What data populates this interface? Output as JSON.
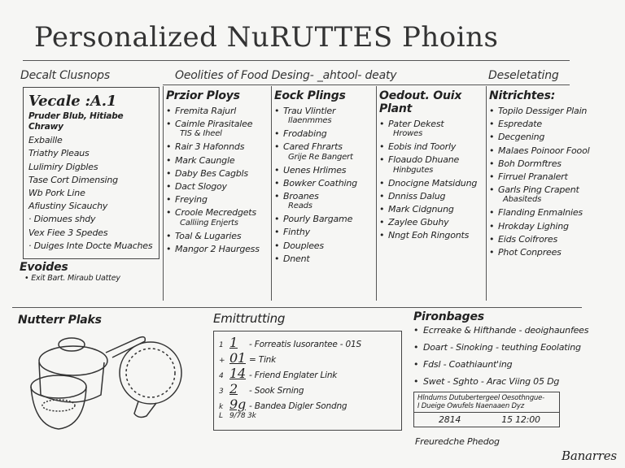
{
  "title": "Personalized NuRUTTES Phoins",
  "headers": {
    "left": "Decalt Clusnops",
    "middle": "Oeolities of Food Desing- _ahtool- deaty",
    "right": "Deseletating"
  },
  "left_panel": {
    "heading": "Vecale :A.1",
    "subheading": "Pruder Blub, Hitiabe Chrawy",
    "items": [
      "Exbaille",
      "Triathy Pleaus",
      "Lulimiry Digbles",
      "Tase Cort Dimensing",
      "Wb Pork Line",
      "Afiustiny Sicauchy",
      "· Diomues shdy",
      "Vex Fiee 3 Spedes",
      "· Duiges Inte Docte Muaches"
    ],
    "footer_heading": "Evoides",
    "footer_item": "• Exit Bart. Miraub Uattey"
  },
  "columns": [
    {
      "heading": "Przior Ploys",
      "items": [
        [
          "Fremita Rajurl"
        ],
        [
          "Caimle Pirasitalee",
          "TIS & Iheel"
        ],
        [
          "Rair 3 Hafonnds"
        ],
        [
          "Mark Caungle"
        ],
        [
          "Daby Bes Cagbls"
        ],
        [
          "Dact Slogoy"
        ],
        [
          "Freying"
        ],
        [
          "Croole Mecredgets",
          "Calliing Enjerts"
        ],
        [
          "Toal & Lugaries"
        ],
        [
          "Mangor 2 Haurgess"
        ]
      ]
    },
    {
      "heading": "Eock Plings",
      "items": [
        [
          "Trau Vlintler",
          "Ilaenmmes"
        ],
        [
          "Frodabing"
        ],
        [
          "Cared Fhrarts",
          "Grije Re Bangert"
        ],
        [
          "Uenes Hrlimes"
        ],
        [
          "Bowker Coathing"
        ],
        [
          "Broanes",
          "Reads"
        ],
        [
          "Pourly Bargame"
        ],
        [
          "Finthy"
        ],
        [
          "Douplees"
        ],
        [
          "Dnent"
        ]
      ]
    },
    {
      "heading": "Oedout. Ouix Plant",
      "items": [
        [
          "Pater Dekest",
          "Hrowes"
        ],
        [
          "Eobis ind Toorly"
        ],
        [
          "Floaudo Dhuane",
          "Hinbgutes"
        ],
        " ",
        [
          "Dnocigne Matsidung"
        ],
        [
          "Dnniss Dalug"
        ],
        [
          "Mark Cidgnung"
        ],
        [
          "Zaylee Gbuhy"
        ],
        [
          "Nngt Eoh Ringonts"
        ]
      ]
    },
    {
      "heading": "Nitrichtes:",
      "items": [
        [
          "Topilo Dessiger Plain"
        ],
        [
          "Espredate"
        ],
        [
          "Decgening"
        ],
        [
          "Malaes Poinoor Foool"
        ],
        [
          "Boh Dormftres"
        ],
        [
          "Firruel Pranalert"
        ],
        [
          "Garls Ping Crapent",
          "Abasiteds"
        ],
        [
          "Flanding Enmalnies"
        ],
        [
          "Hrokday Lighing"
        ],
        [
          "Eids Coifrores"
        ],
        [
          "Phot Conprees"
        ]
      ]
    }
  ],
  "bottom": {
    "left_heading": "Nutterr Plaks",
    "emit": {
      "heading": "Emittrutting",
      "rows": [
        {
          "marker": "1",
          "num": "1",
          "text": "- Forreatis Iusorantee - 01S"
        },
        {
          "marker": "+",
          "num": "01",
          "text": "= Tink"
        },
        {
          "marker": "4",
          "num": "14",
          "text": "- Friend Englater Link"
        },
        {
          "marker": "3",
          "num": "2",
          "text": "- Sook Srning"
        },
        {
          "marker": "k",
          "num": "9g",
          "text": "- Bandea Digler Sondng"
        },
        {
          "marker": "L",
          "num": "",
          "text": "9/78 3k"
        }
      ]
    },
    "right": {
      "heading": "Pironbages",
      "items": [
        "Ecrreake & Hifthande - deoighaunfees",
        "Doart - Sinoking - teuthing Eoolating",
        "Fdsl - Coathiaunt'ing",
        "Swet - Sghto - Arac Viing 05 Dg"
      ],
      "table": {
        "headers": [
          "Hlndums Dutubertergeel Oesothngue-",
          "I Dueige Owufels Naenaaen Dyz"
        ],
        "values": [
          "2814",
          "15 12:00"
        ]
      },
      "footer": "Freuredche Phedog",
      "signature": "Banarres"
    }
  }
}
